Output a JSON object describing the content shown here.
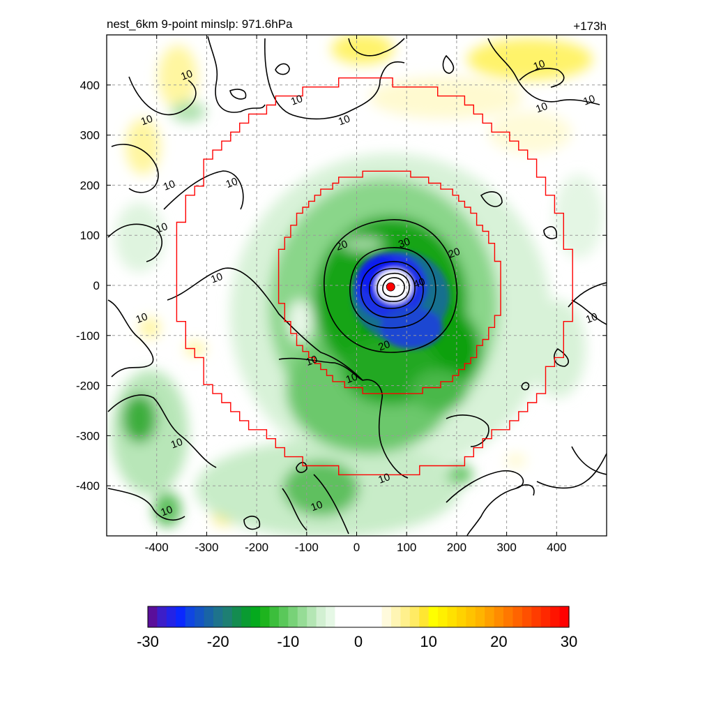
{
  "chart_data": {
    "type": "heatmap",
    "title_left": "nest_6km  9-point minslp: 971.6hPa",
    "title_right": "+173h",
    "xlabel": "",
    "ylabel": "",
    "xlim": [
      -500,
      500
    ],
    "ylim": [
      -500,
      500
    ],
    "x_ticks": [
      -400,
      -300,
      -200,
      -100,
      0,
      100,
      200,
      300,
      400
    ],
    "y_ticks": [
      400,
      300,
      200,
      100,
      0,
      -100,
      -200,
      -300,
      -400
    ],
    "x_tick_labels": [
      "-400",
      "-300",
      "-200",
      "-100",
      "0",
      "100",
      "200",
      "300",
      "400"
    ],
    "y_tick_labels": [
      "400",
      "300",
      "200",
      "100",
      "0",
      "-100",
      "-200",
      "-300",
      "-400"
    ],
    "grid": true,
    "storm_center": [
      68,
      -3
    ],
    "contour_levels": [
      10,
      20,
      30,
      40
    ],
    "contour_labels": [
      {
        "text": "10",
        "x": -340,
        "y": 420
      },
      {
        "text": "10",
        "x": -420,
        "y": 330
      },
      {
        "text": "10",
        "x": -120,
        "y": 370
      },
      {
        "text": "10",
        "x": -25,
        "y": 330
      },
      {
        "text": "10",
        "x": -375,
        "y": 200
      },
      {
        "text": "10",
        "x": -250,
        "y": 205
      },
      {
        "text": "10",
        "x": -390,
        "y": 115
      },
      {
        "text": "10",
        "x": -280,
        "y": 15
      },
      {
        "text": "10",
        "x": -430,
        "y": -65
      },
      {
        "text": "10",
        "x": -90,
        "y": -150
      },
      {
        "text": "10",
        "x": -10,
        "y": -185
      },
      {
        "text": "10",
        "x": 55,
        "y": -385
      },
      {
        "text": "10",
        "x": -80,
        "y": -440
      },
      {
        "text": "10",
        "x": -360,
        "y": -315
      },
      {
        "text": "10",
        "x": -380,
        "y": -450
      },
      {
        "text": "10",
        "x": 365,
        "y": 440
      },
      {
        "text": "10",
        "x": 370,
        "y": 355
      },
      {
        "text": "10",
        "x": 465,
        "y": 370
      },
      {
        "text": "10",
        "x": 470,
        "y": -65
      },
      {
        "text": "20",
        "x": -30,
        "y": 80
      },
      {
        "text": "20",
        "x": 195,
        "y": 65
      },
      {
        "text": "20",
        "x": 55,
        "y": -120
      },
      {
        "text": "30",
        "x": 95,
        "y": 85
      },
      {
        "text": "40",
        "x": 125,
        "y": 5
      }
    ],
    "colorbar": {
      "min": -30,
      "max": 30,
      "ticks": [
        -30,
        -20,
        -10,
        0,
        10,
        20,
        30
      ],
      "tick_labels": [
        "-30",
        "-20",
        "-10",
        "0",
        "10",
        "20",
        "30"
      ],
      "colors": [
        "#5a0f9a",
        "#3c1ec8",
        "#2323e6",
        "#0a28ff",
        "#0f46e1",
        "#1455c3",
        "#1964a5",
        "#1e738c",
        "#1e7f73",
        "#148c50",
        "#0a9b32",
        "#05aa1e",
        "#1eb41e",
        "#3cbe3c",
        "#5ac85a",
        "#78d278",
        "#96dc96",
        "#b4e6b4",
        "#d2f0d2",
        "#e6f8e6",
        "#ffffff",
        "#ffffff",
        "#ffffff",
        "#ffffff",
        "#ffffff",
        "#fffadc",
        "#fff5b4",
        "#fff08c",
        "#ffeb64",
        "#ffe632",
        "#ffff00",
        "#fff000",
        "#ffe100",
        "#ffd200",
        "#ffc300",
        "#ffb400",
        "#ffa000",
        "#ff8c00",
        "#ff7800",
        "#ff6400",
        "#ff5000",
        "#ff3c00",
        "#ff2800",
        "#ff1400",
        "#ff0000"
      ]
    }
  }
}
